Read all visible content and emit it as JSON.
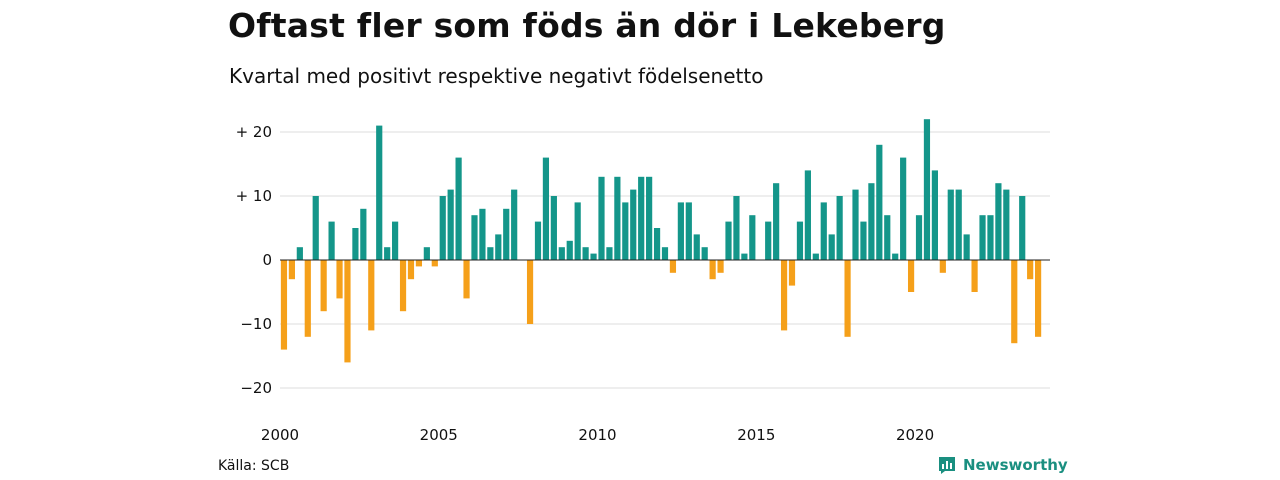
{
  "colors": {
    "positive": "#14968a",
    "negative": "#f5a01a",
    "grid": "#dddddd",
    "baseline": "#222222",
    "brand": "#1a8f80"
  },
  "footer": {
    "source": "Källa: SCB",
    "brand": "Newsworthy",
    "brand_icon": "bar-chart-logo-icon"
  },
  "chart_data": {
    "type": "bar",
    "title": "Oftast fler som föds än dör i Lekeberg",
    "subtitle": "Kvartal med positivt respektive negativt födelsenetto",
    "xlabel": "",
    "ylabel": "",
    "ylim": [
      -22,
      22
    ],
    "xlim": [
      2000.0,
      2024.25
    ],
    "grid": true,
    "yticks": [
      20,
      10,
      0,
      -10,
      -20
    ],
    "ytick_labels": [
      "+ 20",
      "+ 10",
      "0",
      "−10",
      "−20"
    ],
    "xticks": [
      2000,
      2005,
      2010,
      2015,
      2020
    ],
    "xtick_labels": [
      "2000",
      "2005",
      "2010",
      "2015",
      "2020"
    ],
    "start": "2000 Q1",
    "values": [
      -14,
      -3,
      2,
      -12,
      10,
      -8,
      6,
      -6,
      -16,
      5,
      8,
      -11,
      21,
      2,
      6,
      -8,
      -3,
      -1,
      2,
      -1,
      10,
      11,
      16,
      -6,
      7,
      8,
      2,
      4,
      8,
      11,
      0,
      -10,
      6,
      16,
      10,
      2,
      3,
      9,
      2,
      1,
      13,
      2,
      13,
      9,
      11,
      13,
      13,
      5,
      2,
      -2,
      9,
      9,
      4,
      2,
      -3,
      -2,
      6,
      10,
      1,
      7,
      0,
      6,
      12,
      -11,
      -4,
      6,
      14,
      1,
      9,
      4,
      10,
      -12,
      11,
      6,
      12,
      18,
      7,
      1,
      16,
      -5,
      7,
      22,
      14,
      -2,
      11,
      11,
      4,
      -5,
      7,
      7,
      12,
      11,
      -13,
      10,
      -3,
      -12
    ]
  }
}
